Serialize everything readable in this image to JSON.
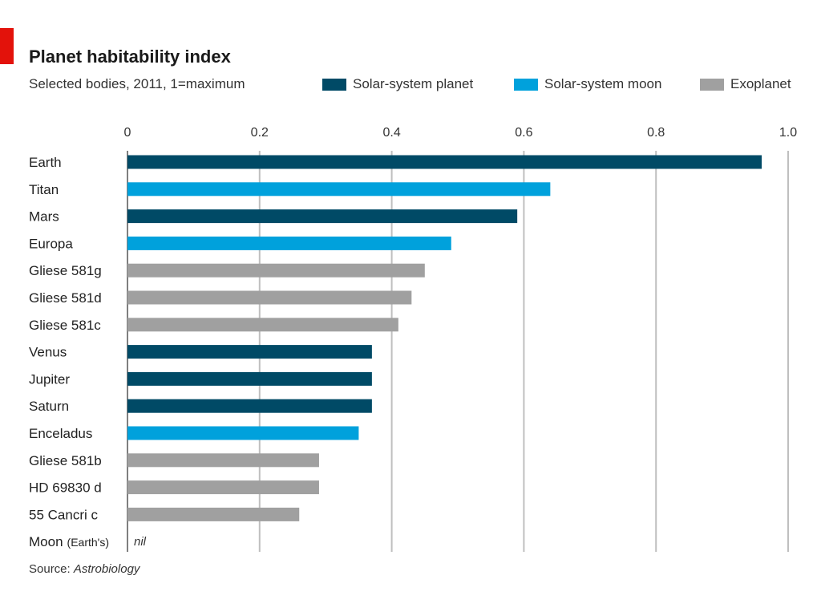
{
  "header": {
    "title": "Planet habitability index",
    "subtitle": "Selected bodies, 2011, 1=maximum"
  },
  "legend": [
    {
      "label": "Solar-system planet",
      "color": "#004a66"
    },
    {
      "label": "Solar-system moon",
      "color": "#00a1dc"
    },
    {
      "label": "Exoplanet",
      "color": "#a0a0a0"
    }
  ],
  "footer": {
    "source_label": "Source:",
    "source_name": "Astrobiology"
  },
  "chart_data": {
    "type": "bar",
    "orientation": "horizontal",
    "title": "Planet habitability index",
    "subtitle": "Selected bodies, 2011, 1=maximum",
    "xlim": [
      0,
      1.0
    ],
    "xticks": [
      "0",
      "0.2",
      "0.4",
      "0.6",
      "0.8",
      "1.0"
    ],
    "grid": true,
    "legend_position": "top-right",
    "categories": [
      "Earth",
      "Titan",
      "Mars",
      "Europa",
      "Gliese 581g",
      "Gliese 581d",
      "Gliese 581c",
      "Venus",
      "Jupiter",
      "Saturn",
      "Enceladus",
      "Gliese 581b",
      "HD 69830 d",
      "55 Cancri c",
      "Moon"
    ],
    "category_note": {
      "Moon": "(Earth's)"
    },
    "values": [
      0.96,
      0.64,
      0.59,
      0.49,
      0.45,
      0.43,
      0.41,
      0.37,
      0.37,
      0.37,
      0.35,
      0.29,
      0.29,
      0.26,
      null
    ],
    "groups": [
      "Solar-system planet",
      "Solar-system moon",
      "Solar-system planet",
      "Solar-system moon",
      "Exoplanet",
      "Exoplanet",
      "Exoplanet",
      "Solar-system planet",
      "Solar-system planet",
      "Solar-system planet",
      "Solar-system moon",
      "Exoplanet",
      "Exoplanet",
      "Exoplanet",
      "Solar-system moon"
    ],
    "annotations": {
      "Moon": "nil"
    }
  }
}
